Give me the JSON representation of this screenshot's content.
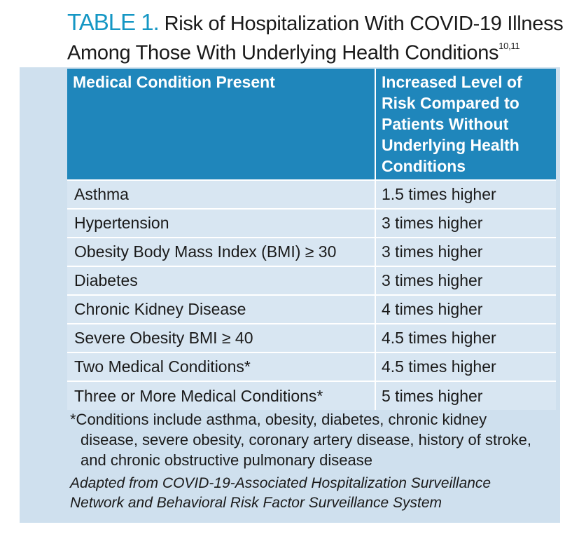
{
  "title": {
    "label": "TABLE 1.",
    "line1": "Risk of Hospitalization With COVID-19 Illness",
    "line2": "Among Those With Underlying Health Conditions",
    "superscript": "10,11"
  },
  "table": {
    "headers": [
      "Medical Condition Present",
      "Increased Level of Risk Compared to Patients Without Underlying Health Conditions"
    ],
    "rows": [
      {
        "condition": "Asthma",
        "risk": "1.5 times higher"
      },
      {
        "condition": "Hypertension",
        "risk": "3 times higher"
      },
      {
        "condition": "Obesity Body Mass Index (BMI) ≥ 30",
        "risk": "3 times higher"
      },
      {
        "condition": "Diabetes",
        "risk": "3 times higher"
      },
      {
        "condition": "Chronic Kidney Disease",
        "risk": "4 times higher"
      },
      {
        "condition": "Severe Obesity BMI ≥ 40",
        "risk": "4.5 times higher"
      },
      {
        "condition": "Two Medical Conditions*",
        "risk": "4.5 times higher"
      },
      {
        "condition": "Three or More Medical Conditions*",
        "risk": "5 times higher"
      }
    ]
  },
  "footnote": {
    "line1": "*Conditions include asthma, obesity, diabetes, chronic kidney",
    "line2": "disease, severe obesity, coronary artery disease, history of stroke,",
    "line3": "and chronic obstructive pulmonary disease"
  },
  "source": {
    "line1": "Adapted from COVID-19-Associated Hospitalization Surveillance",
    "line2": "Network and Behavioral Risk Factor Surveillance System"
  },
  "colors": {
    "title_label": "#1597c4",
    "header_bg": "#1f86bb",
    "panel_bg": "#cfe0ee",
    "cell_bg": "#d8e6f2"
  }
}
